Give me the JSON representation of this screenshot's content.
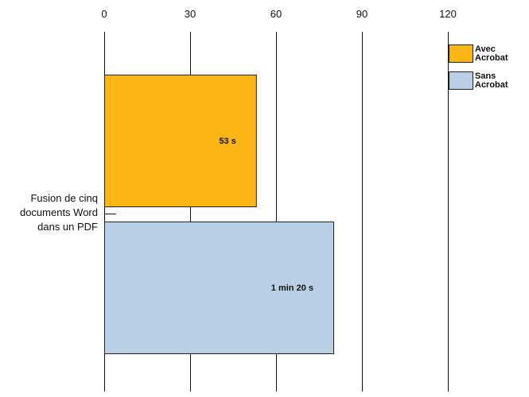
{
  "chart_data": {
    "type": "bar",
    "orientation": "horizontal",
    "categories": [
      "Fusion de cinq documents Word dans un PDF"
    ],
    "category_label_lines": [
      "Fusion de cinq",
      "documents Word",
      "dans un PDF"
    ],
    "series": [
      {
        "name": "Avec Acrobat",
        "legend_lines": [
          "Avec",
          "Acrobat"
        ],
        "values": [
          53
        ],
        "value_labels": [
          "53 s"
        ],
        "color": "#FBB515"
      },
      {
        "name": "Sans Acrobat",
        "legend_lines": [
          "Sans",
          "Acrobat"
        ],
        "values": [
          80
        ],
        "value_labels": [
          "1 min 20 s"
        ],
        "color": "#B8CFE6"
      }
    ],
    "x_ticks": [
      0,
      30,
      60,
      90,
      120
    ],
    "x_tick_labels": [
      "0",
      "30",
      "60",
      "90",
      "120"
    ],
    "xlim": [
      0,
      140
    ],
    "title": "",
    "xlabel": "",
    "ylabel": "",
    "grid": true,
    "legend_position": "top-right",
    "axis_position": "top"
  }
}
